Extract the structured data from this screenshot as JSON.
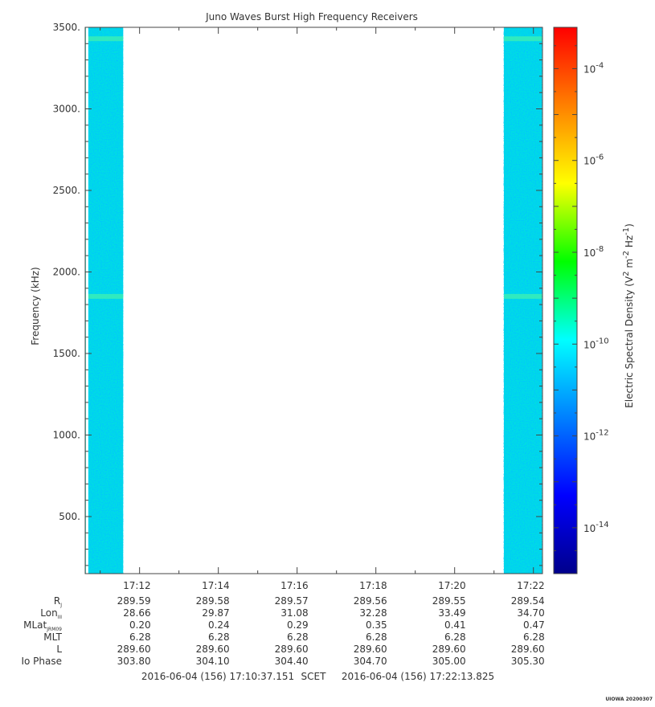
{
  "chart_data": {
    "type": "heatmap",
    "title": "Juno Waves Burst High Frequency Receivers",
    "ylabel": "Frequency (kHz)",
    "colorbar_label_main": "Electric Spectral Density (V",
    "colorbar_label_sup1": "2",
    "colorbar_label_mid": " m",
    "colorbar_label_sup2": "-2",
    "colorbar_label_mid2": " Hz",
    "colorbar_label_sup3": "-1",
    "colorbar_label_end": ")",
    "ylim": [
      150,
      3500
    ],
    "y_ticks": [
      {
        "value": 500,
        "label": "500."
      },
      {
        "value": 1000,
        "label": "1000."
      },
      {
        "value": 1500,
        "label": "1500."
      },
      {
        "value": 2000,
        "label": "2000."
      },
      {
        "value": 2500,
        "label": "2500."
      },
      {
        "value": 3000,
        "label": "3000."
      },
      {
        "value": 3500,
        "label": "3500."
      }
    ],
    "x_range": [
      "17:10:37.151",
      "17:22:13.825"
    ],
    "x_ticks": [
      "17:12",
      "17:14",
      "17:16",
      "17:18",
      "17:20",
      "17:22"
    ],
    "colorbar_range_log10": [
      -15,
      -3.1
    ],
    "colorbar_ticks": [
      {
        "exp": -4,
        "base": "10",
        "sup": "-4"
      },
      {
        "exp": -6,
        "base": "10",
        "sup": "-6"
      },
      {
        "exp": -8,
        "base": "10",
        "sup": "-8"
      },
      {
        "exp": -10,
        "base": "10",
        "sup": "-10"
      },
      {
        "exp": -12,
        "base": "10",
        "sup": "-12"
      },
      {
        "exp": -14,
        "base": "10",
        "sup": "-14"
      }
    ],
    "colormap": [
      "#00008b",
      "#0000ff",
      "#0080ff",
      "#00ffff",
      "#00ff00",
      "#ffff00",
      "#ff8000",
      "#ff0000"
    ],
    "data_segments": [
      {
        "start": "17:10:37",
        "end": "17:11:35",
        "level_log10": -12,
        "color": "#00e0e0"
      },
      {
        "start": "17:21:15",
        "end": "17:22:13",
        "level_log10": -12,
        "color": "#00e0e0"
      }
    ],
    "emission_bands_khz": [
      1850,
      3430
    ]
  },
  "ephemeris": {
    "rows": [
      {
        "label": "R",
        "sub": "J",
        "values": [
          "289.59",
          "289.58",
          "289.57",
          "289.56",
          "289.55",
          "289.54"
        ]
      },
      {
        "label": "Lon",
        "sub": "III",
        "values": [
          "28.66",
          "29.87",
          "31.08",
          "32.28",
          "33.49",
          "34.70"
        ]
      },
      {
        "label": "MLat",
        "sub": "JRM09",
        "values": [
          "0.20",
          "0.24",
          "0.29",
          "0.35",
          "0.41",
          "0.47"
        ]
      },
      {
        "label": "MLT",
        "sub": "",
        "values": [
          "6.28",
          "6.28",
          "6.28",
          "6.28",
          "6.28",
          "6.28"
        ]
      },
      {
        "label": "L",
        "sub": "",
        "values": [
          "289.60",
          "289.60",
          "289.60",
          "289.60",
          "289.60",
          "289.60"
        ]
      },
      {
        "label": "Io Phase",
        "sub": "",
        "values": [
          "303.80",
          "304.10",
          "304.40",
          "304.70",
          "305.00",
          "305.30"
        ]
      }
    ]
  },
  "footer": {
    "start": "2016-06-04 (156) 17:10:37.151",
    "scet": "SCET",
    "end": "2016-06-04 (156) 17:22:13.825"
  },
  "credit": "UIOWA 20200307"
}
